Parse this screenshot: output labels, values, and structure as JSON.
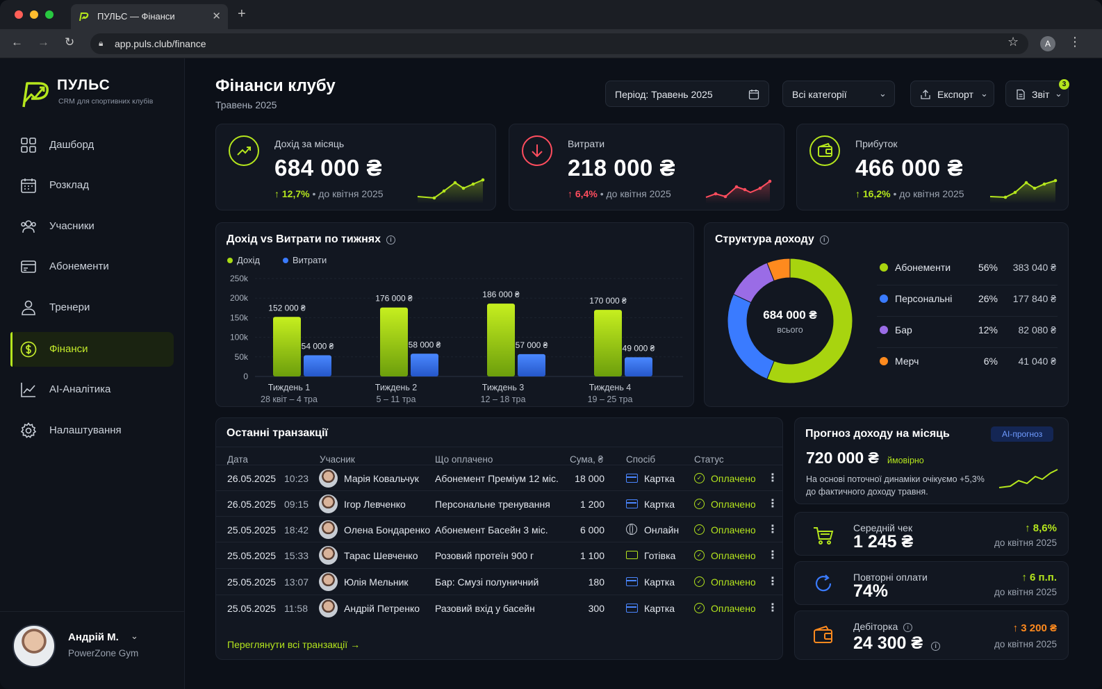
{
  "browser": {
    "tab_title": "ПУЛЬС — Фінанси",
    "url": "app.puls.club/finance",
    "profile_letter": "A"
  },
  "sidebar": {
    "brand": "ПУЛЬС",
    "brand_sub": "CRM для спортивних клубів",
    "items": [
      {
        "label": "Дашборд",
        "icon": "grid-icon"
      },
      {
        "label": "Розклад",
        "icon": "calendar-icon"
      },
      {
        "label": "Учасники",
        "icon": "users-icon"
      },
      {
        "label": "Абонементи",
        "icon": "card-icon"
      },
      {
        "label": "Тренери",
        "icon": "person-icon"
      },
      {
        "label": "Фінанси",
        "icon": "dollar-icon",
        "active": true
      },
      {
        "label": "AI-Аналітика",
        "icon": "chart-line-icon"
      },
      {
        "label": "Налаштування",
        "icon": "gear-icon"
      }
    ],
    "user": {
      "name": "Андрій М.",
      "club": "PowerZone Gym"
    }
  },
  "header": {
    "title": "Фінанси клубу",
    "subtitle": "Травень 2025",
    "period": "Період: Травень 2025",
    "category": "Всі категорії",
    "export": "Експорт",
    "report": "Звіт",
    "report_badge": "3"
  },
  "kpis": [
    {
      "label": "Дохід за місяць",
      "value": "684 000 ₴",
      "change": "12,7%",
      "compare": "• до квітня 2025",
      "color": "#b5e61d"
    },
    {
      "label": "Витрати",
      "value": "218 000 ₴",
      "change": "6,4%",
      "compare": "• до квітня 2025",
      "color": "#ff4d5e"
    },
    {
      "label": "Прибуток",
      "value": "466 000 ₴",
      "change": "16,2%",
      "compare": "• до квітня 2025",
      "color": "#b5e61d"
    }
  ],
  "weekly": {
    "title": "Дохід vs Витрати по тижнях",
    "legend_income": "Дохід",
    "legend_expense": "Витрати",
    "y_ticks": [
      "250k",
      "200k",
      "150k",
      "100k",
      "50k",
      "0"
    ],
    "weeks": [
      {
        "name": "Тиждень 1",
        "range": "28 квіт – 4 тра"
      },
      {
        "name": "Тиждень 2",
        "range": "5 – 11 тра"
      },
      {
        "name": "Тиждень 3",
        "range": "12 – 18 тра"
      },
      {
        "name": "Тиждень 4",
        "range": "19 – 25 тра"
      }
    ]
  },
  "chart_data": {
    "type": "bar",
    "title": "Дохід vs Витрати по тижнях",
    "categories": [
      "Тиждень 1",
      "Тиждень 2",
      "Тиждень 3",
      "Тиждень 4"
    ],
    "series": [
      {
        "name": "Дохід",
        "values": [
          152000,
          176000,
          186000,
          170000
        ],
        "labels": [
          "152 000 ₴",
          "176 000 ₴",
          "186 000 ₴",
          "170 000 ₴"
        ],
        "color": "#a8db14"
      },
      {
        "name": "Витрати",
        "values": [
          54000,
          58000,
          57000,
          49000
        ],
        "labels": [
          "54 000 ₴",
          "58 000 ₴",
          "57 000 ₴",
          "49 000 ₴"
        ],
        "color": "#3a7bff"
      }
    ],
    "ylim": [
      0,
      250000
    ],
    "grid": true,
    "legend": "top-left"
  },
  "structure": {
    "title": "Структура доходу",
    "center_value": "684 000 ₴",
    "center_label": "всього",
    "items": [
      {
        "name": "Абонементи",
        "pct": "56%",
        "amount": "383 040 ₴",
        "share": 56,
        "color": "#a8d40f"
      },
      {
        "name": "Персональні",
        "pct": "26%",
        "amount": "177 840 ₴",
        "share": 26,
        "color": "#3a7bff"
      },
      {
        "name": "Бар",
        "pct": "12%",
        "amount": "82 080 ₴",
        "share": 12,
        "color": "#9a6ce6"
      },
      {
        "name": "Мерч",
        "pct": "6%",
        "amount": "41 040 ₴",
        "share": 6,
        "color": "#ff8a1e"
      }
    ]
  },
  "transactions": {
    "title": "Останні транзакції",
    "headers": [
      "Дата",
      "Учасник",
      "Що оплачено",
      "Сума, ₴",
      "Спосіб",
      "Статус"
    ],
    "rows": [
      {
        "date": "26.05.2025",
        "time": "10:23",
        "member": "Марія Ковальчук",
        "item": "Абонемент Преміум 12 міс.",
        "amount": "18 000",
        "method": "Картка",
        "status": "Оплачено"
      },
      {
        "date": "26.05.2025",
        "time": "09:15",
        "member": "Ігор Левченко",
        "item": "Персональне тренування",
        "amount": "1 200",
        "method": "Картка",
        "status": "Оплачено"
      },
      {
        "date": "25.05.2025",
        "time": "18:42",
        "member": "Олена Бондаренко",
        "item": "Абонемент Басейн 3 міс.",
        "amount": "6 000",
        "method": "Онлайн",
        "status": "Оплачено"
      },
      {
        "date": "25.05.2025",
        "time": "15:33",
        "member": "Тарас Шевченко",
        "item": "Розовий протеїн 900 г",
        "amount": "1 100",
        "method": "Готівка",
        "status": "Оплачено"
      },
      {
        "date": "25.05.2025",
        "time": "13:07",
        "member": "Юлія Мельник",
        "item": "Бар: Смузі полуничний",
        "amount": "180",
        "method": "Картка",
        "status": "Оплачено"
      },
      {
        "date": "25.05.2025",
        "time": "11:58",
        "member": "Андрій Петренко",
        "item": "Разовий вхід у басейн",
        "amount": "300",
        "method": "Картка",
        "status": "Оплачено"
      }
    ],
    "view_all": "Переглянути всі транзакції"
  },
  "forecast": {
    "title": "Прогноз доходу на місяць",
    "badge": "AI-прогноз",
    "value": "720 000 ₴",
    "likely": "ймовірно",
    "note1": "На основі поточної динаміки очікуємо +5,3%",
    "note2": "до фактичного доходу травня."
  },
  "minis": [
    {
      "label": "Середній чек",
      "value": "1 245 ₴",
      "change": "8,6%",
      "compare": "до квітня 2025",
      "icon": "cart-icon",
      "color": "#b5e61d"
    },
    {
      "label": "Повторні оплати",
      "value": "74%",
      "change": "6 п.п.",
      "compare": "до квітня 2025",
      "icon": "refresh-icon",
      "color": "#b5e61d"
    },
    {
      "label": "Дебіторка",
      "value": "24 300 ₴",
      "change": "3 200 ₴",
      "compare": "до квітня 2025",
      "icon": "wallet-icon",
      "color": "#ff8a1e"
    }
  ]
}
